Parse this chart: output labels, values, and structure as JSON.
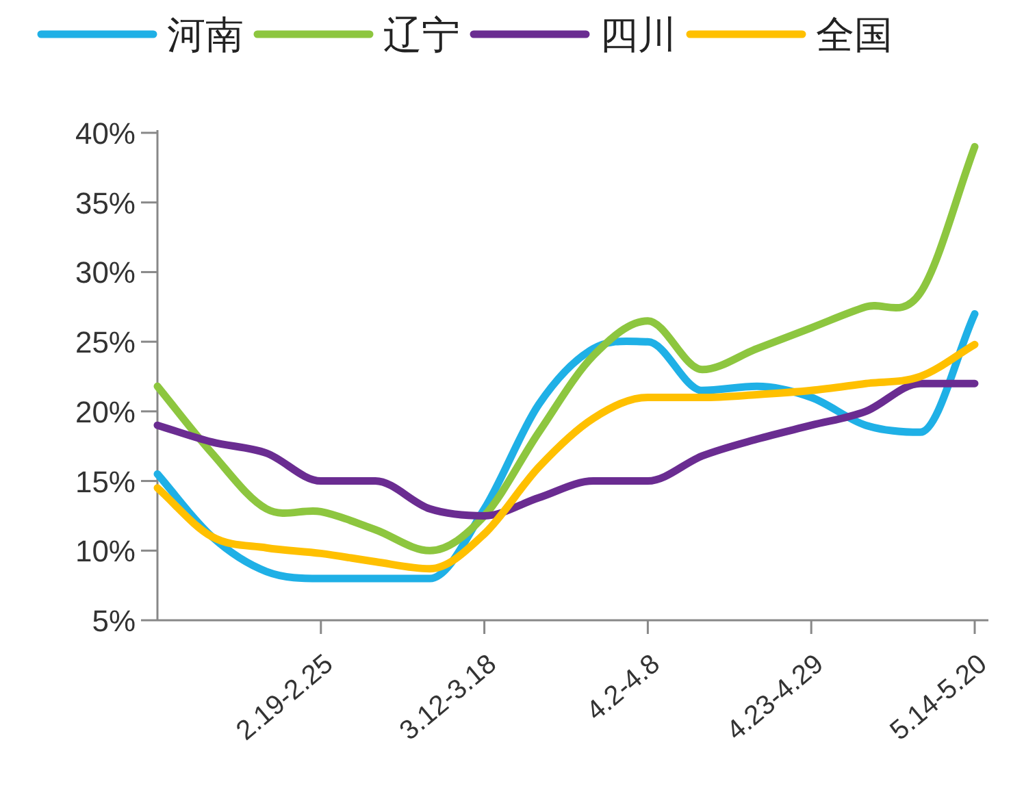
{
  "chart_data": {
    "type": "line",
    "categories": [
      null,
      null,
      null,
      "2.19-2.25",
      null,
      null,
      "3.12-3.18",
      null,
      null,
      "4.2-4.8",
      null,
      null,
      "4.23-4.29",
      null,
      null,
      "5.14-5.20"
    ],
    "ylim": [
      5,
      40
    ],
    "yticks": [
      {
        "value": 5,
        "label": "5%"
      },
      {
        "value": 10,
        "label": "10%"
      },
      {
        "value": 15,
        "label": "15%"
      },
      {
        "value": 20,
        "label": "20%"
      },
      {
        "value": 25,
        "label": "25%"
      },
      {
        "value": 30,
        "label": "30%"
      },
      {
        "value": 35,
        "label": "35%"
      },
      {
        "value": 40,
        "label": "40%"
      }
    ],
    "legend": "top",
    "series": [
      {
        "name": "河南",
        "color": "#1fb0e6",
        "values": [
          15.5,
          11,
          8.5,
          8,
          8,
          8,
          13,
          20.5,
          24.5,
          25,
          21.5,
          21.8,
          21,
          19,
          18.5,
          27
        ]
      },
      {
        "name": "辽宁",
        "color": "#8dc63f",
        "values": [
          21.8,
          17,
          13,
          12.8,
          11.5,
          10,
          12.5,
          18.5,
          24,
          26.5,
          23,
          24.5,
          26,
          27.5,
          28.5,
          39
        ]
      },
      {
        "name": "四川",
        "color": "#6a2c91",
        "values": [
          19,
          17.8,
          17,
          15,
          15,
          13,
          12.5,
          13.8,
          15,
          15,
          16.8,
          18,
          19,
          20,
          22,
          22
        ]
      },
      {
        "name": "全国",
        "color": "#ffc000",
        "values": [
          14.5,
          11,
          10.2,
          9.8,
          9.2,
          8.7,
          11.2,
          16,
          19.5,
          21,
          21,
          21.2,
          21.5,
          22,
          22.5,
          24.8
        ]
      }
    ]
  }
}
